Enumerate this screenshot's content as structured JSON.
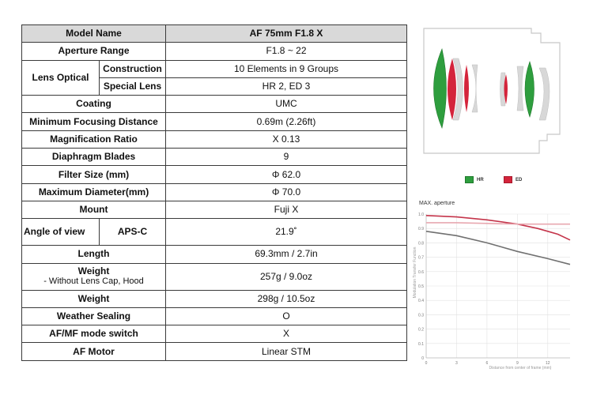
{
  "table": {
    "header": {
      "label": "Model Name",
      "value": "AF 75mm F1.8 X"
    },
    "aperture": {
      "label": "Aperture Range",
      "value": "F1.8 ~ 22"
    },
    "lens_optical": {
      "label": "Lens Optical",
      "construction": {
        "label": "Construction",
        "value": "10 Elements in 9 Groups"
      },
      "special": {
        "label": "Special Lens",
        "value": "HR 2, ED 3"
      }
    },
    "coating": {
      "label": "Coating",
      "value": "UMC"
    },
    "min_focus": {
      "label": "Minimum Focusing Distance",
      "value": "0.69m (2.26ft)"
    },
    "magnification": {
      "label": "Magnification Ratio",
      "value": "X 0.13"
    },
    "blades": {
      "label": "Diaphragm Blades",
      "value": "9"
    },
    "filter": {
      "label": "Filter Size (mm)",
      "value": "Φ 62.0"
    },
    "diameter": {
      "label": "Maximum Diameter(mm)",
      "value": "Φ 70.0"
    },
    "mount": {
      "label": "Mount",
      "value": "Fuji X"
    },
    "angle": {
      "label": "Angle of view",
      "sub_label": "APS-C",
      "value": "21.9˚"
    },
    "length": {
      "label": "Length",
      "value": "69.3mm / 2.7in"
    },
    "weight_bare": {
      "label": "Weight",
      "sub_label": "- Without Lens Cap, Hood",
      "value": "257g / 9.0oz"
    },
    "weight": {
      "label": "Weight",
      "value": "298g / 10.5oz"
    },
    "weather": {
      "label": "Weather Sealing",
      "value": "O"
    },
    "afmf": {
      "label": "AF/MF mode switch",
      "value": "X"
    },
    "motor": {
      "label": "AF Motor",
      "value": "Linear STM"
    }
  },
  "legend": {
    "hr": {
      "label": "HR",
      "color": "#2e9e3e"
    },
    "ed": {
      "label": "ED",
      "color": "#d4243b"
    }
  },
  "chart_data": {
    "type": "line",
    "title": "MAX. aperture",
    "xlabel": "Distance from center of frame (mm)",
    "ylabel": "Modulation Transfer Function",
    "xlim": [
      0,
      14.2
    ],
    "ylim": [
      0,
      1.0
    ],
    "x_ticks": [
      "0",
      "3",
      "6",
      "9",
      "12"
    ],
    "y_ticks": [
      "0",
      "0.1",
      "0.2",
      "0.3",
      "0.4",
      "0.5",
      "0.6",
      "0.7",
      "0.8",
      "0.9",
      "1.0"
    ],
    "grid": true,
    "series": [
      {
        "color": "#c4344a",
        "x": [
          0,
          3,
          6,
          9,
          11,
          12,
          13,
          14.2
        ],
        "y": [
          0.99,
          0.98,
          0.96,
          0.93,
          0.9,
          0.88,
          0.86,
          0.82
        ]
      },
      {
        "color": "#e8a8b0",
        "x": [
          0,
          3,
          6,
          9,
          12,
          14.2
        ],
        "y": [
          0.94,
          0.94,
          0.935,
          0.93,
          0.93,
          0.93
        ]
      },
      {
        "color": "#707070",
        "x": [
          0,
          3,
          6,
          9,
          12,
          14.2
        ],
        "y": [
          0.88,
          0.85,
          0.8,
          0.74,
          0.69,
          0.65
        ]
      }
    ]
  }
}
